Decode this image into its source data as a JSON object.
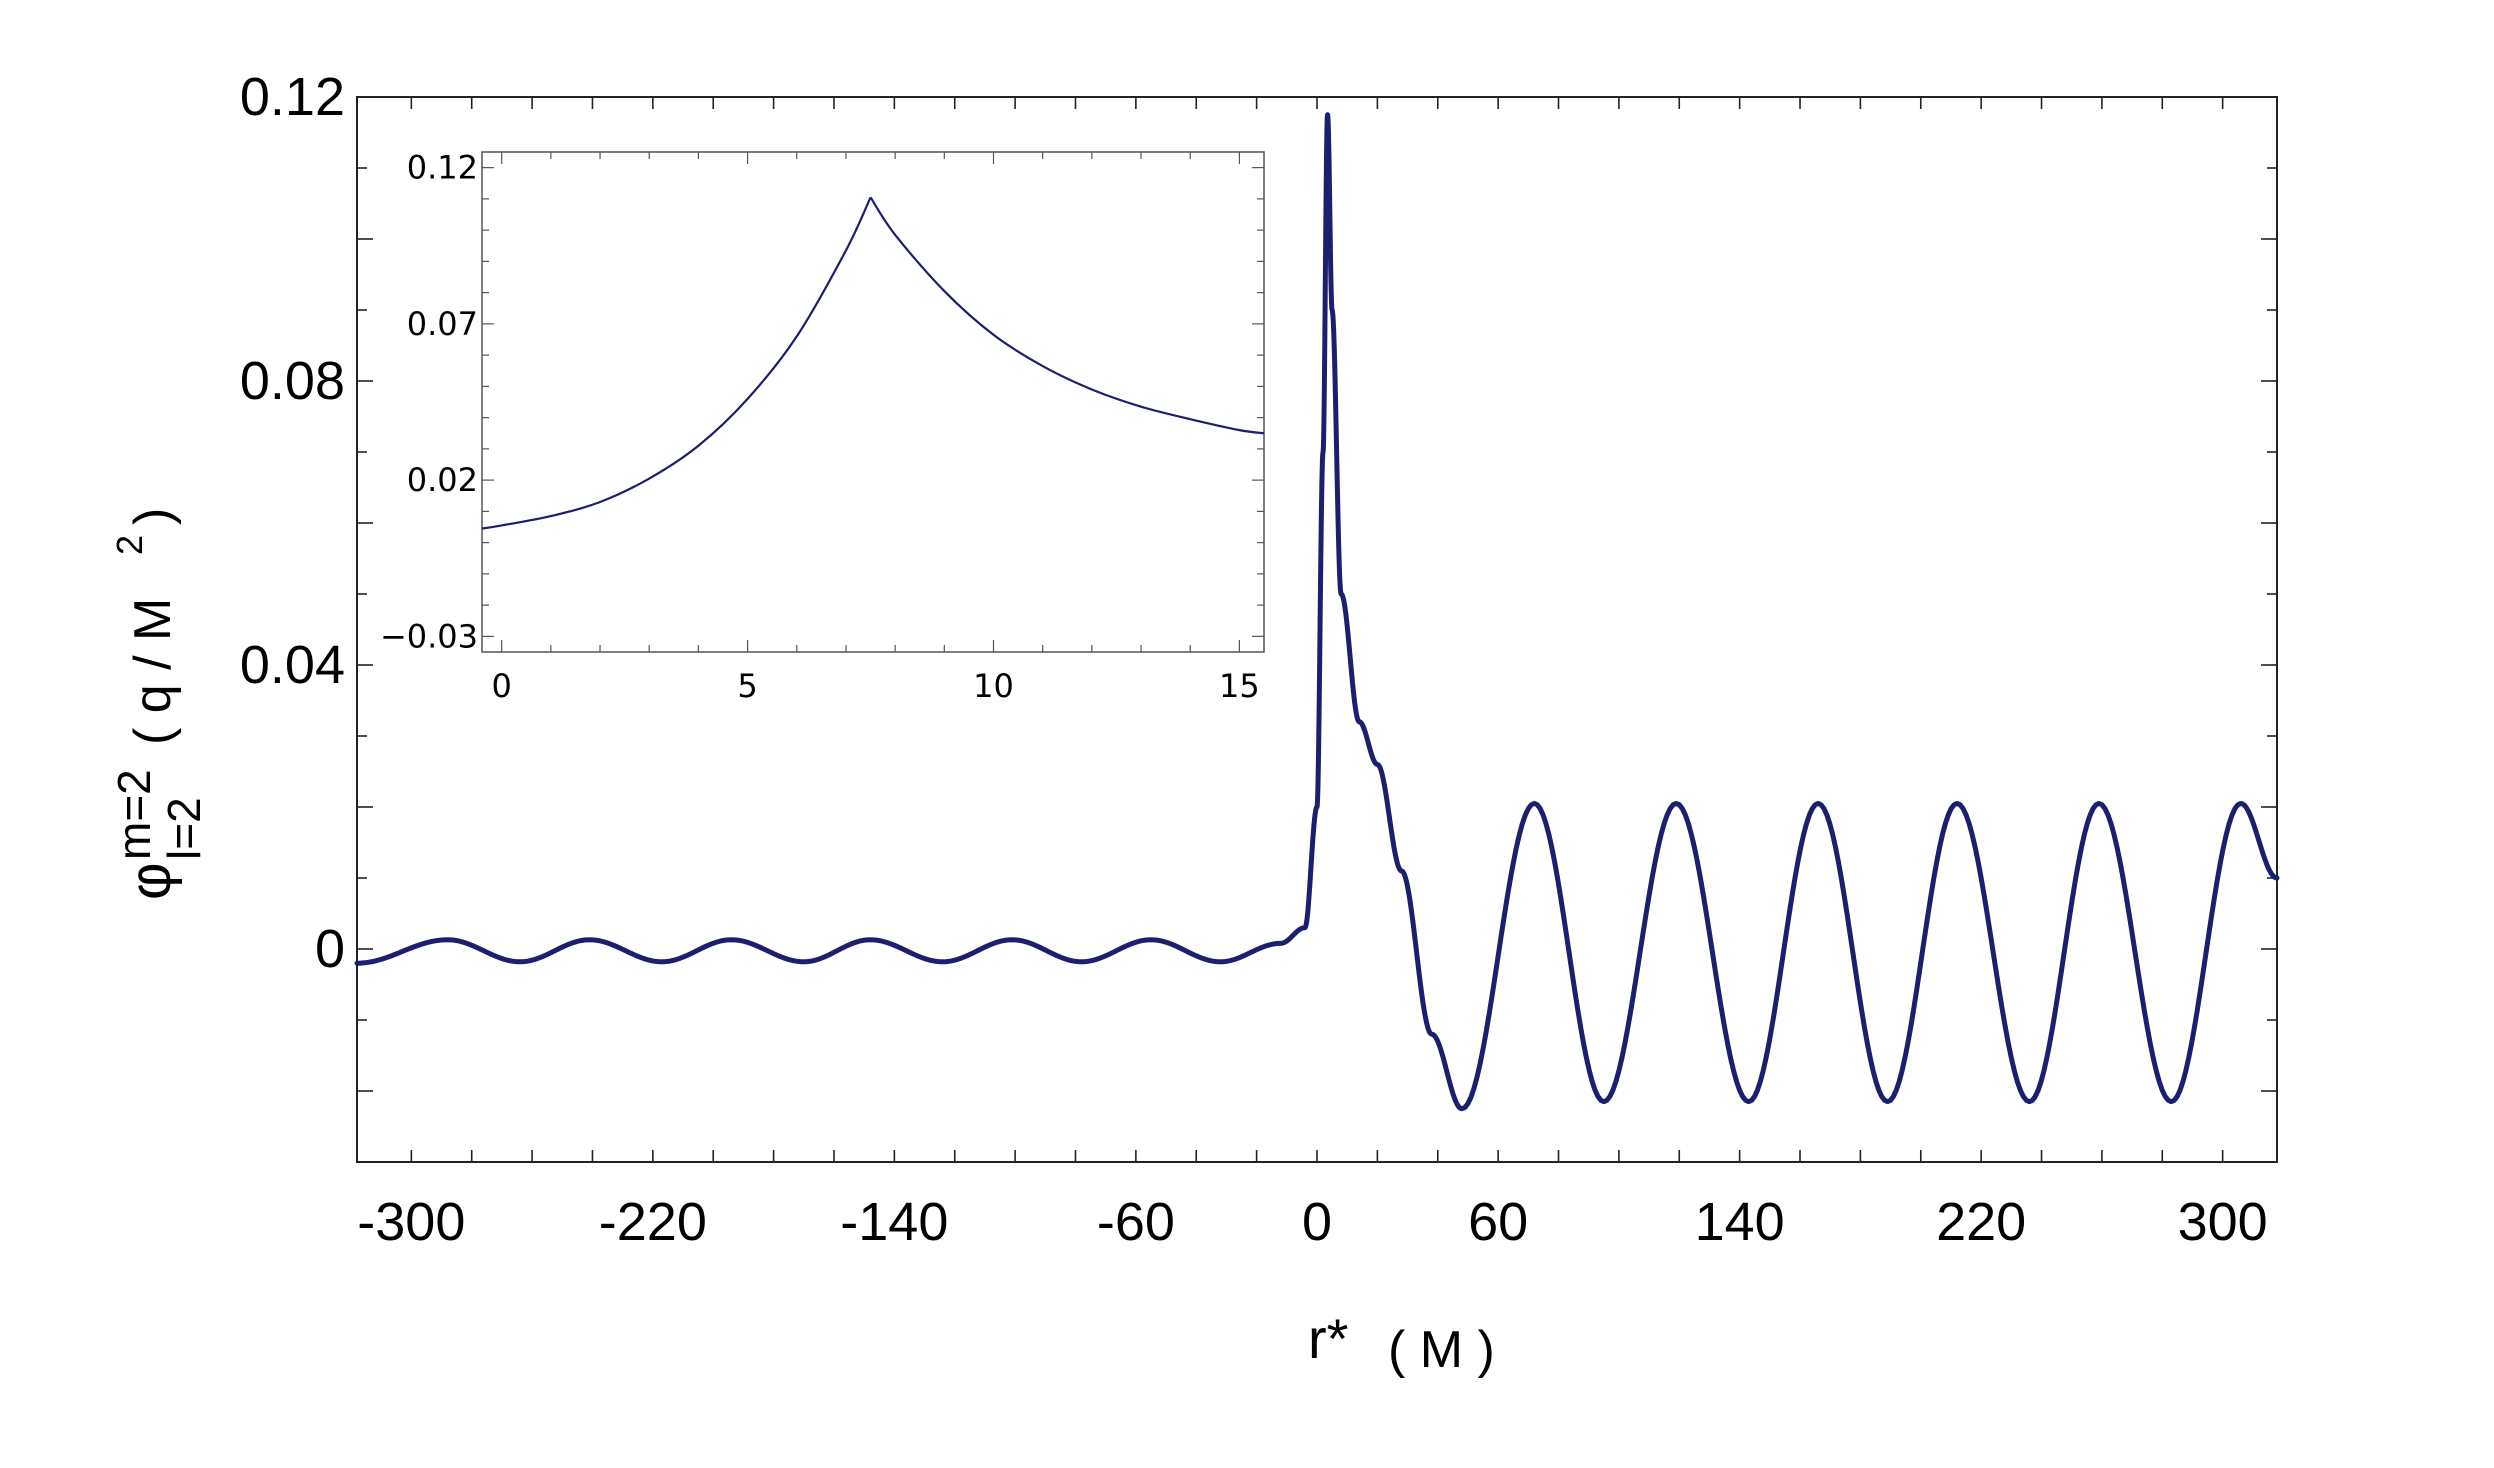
{
  "chart_data": [
    {
      "id": "main",
      "type": "line",
      "title": "",
      "xlabel": "r*",
      "xlabel_unit": "( M )",
      "ylabel": "φ",
      "ylabel_sup": "m=2",
      "ylabel_sub": "l=2",
      "ylabel_unit": "( q / M",
      "ylabel_unit_sup": "2",
      "ylabel_unit_close": ")",
      "xlim": [
        -318,
        318
      ],
      "ylim": [
        -0.03,
        0.12
      ],
      "xticks": [
        -300,
        -220,
        -140,
        -60,
        0,
        60,
        140,
        220,
        300
      ],
      "xtick_labels": [
        "-300",
        "-220",
        "-140",
        "-60",
        "0",
        "60",
        "140",
        "220",
        "300"
      ],
      "yticks": [
        0,
        0.04,
        0.08,
        0.12
      ],
      "ytick_labels": [
        "0",
        "0.04",
        "0.08",
        "0.12"
      ],
      "line_color": "#1c1f6e",
      "grid": false,
      "series": [
        {
          "description_points": [
            [
              -318,
              -0.002
            ],
            [
              -288,
              0.0013
            ],
            [
              -264,
              -0.0018
            ],
            [
              -241,
              0.0013
            ],
            [
              -217,
              -0.0018
            ],
            [
              -194,
              0.0013
            ],
            [
              -170,
              -0.0018
            ],
            [
              -148,
              0.0013
            ],
            [
              -124,
              -0.0018
            ],
            [
              -101,
              0.0013
            ],
            [
              -78,
              -0.0018
            ],
            [
              -55,
              0.0013
            ],
            [
              -32,
              -0.0018
            ],
            [
              -12,
              0.0008
            ],
            [
              -4,
              0.003
            ],
            [
              0,
              0.02
            ],
            [
              2,
              0.07
            ],
            [
              3.5,
              0.1175
            ],
            [
              5,
              0.09
            ],
            [
              8,
              0.05
            ],
            [
              14,
              0.032
            ],
            [
              20,
              0.026
            ],
            [
              28,
              0.011
            ],
            [
              38,
              -0.012
            ],
            [
              48,
              -0.0225
            ],
            [
              72,
              0.0205
            ],
            [
              95,
              -0.0215
            ],
            [
              119,
              0.0205
            ],
            [
              143,
              -0.0215
            ],
            [
              166,
              0.0205
            ],
            [
              189,
              -0.0215
            ],
            [
              212,
              0.0205
            ],
            [
              236,
              -0.0215
            ],
            [
              259,
              0.0205
            ],
            [
              283,
              -0.0215
            ],
            [
              306,
              0.0205
            ],
            [
              318,
              0.01
            ]
          ]
        }
      ]
    },
    {
      "id": "inset",
      "type": "line",
      "title": "",
      "xlabel": "",
      "ylabel": "",
      "xlim": [
        -0.4,
        15.5
      ],
      "ylim": [
        -0.035,
        0.125
      ],
      "xticks": [
        0,
        5,
        10,
        15
      ],
      "xtick_labels": [
        "0",
        "5",
        "10",
        "15"
      ],
      "yticks": [
        -0.03,
        0.02,
        0.07,
        0.12
      ],
      "ytick_labels": [
        "−0.03",
        "0.02",
        "0.07",
        "0.12"
      ],
      "line_color": "#1c1f6e",
      "grid": false,
      "series": [
        {
          "peak_x": 7.5,
          "peak_y": 0.1105,
          "points": [
            [
              -0.4,
              0.0045
            ],
            [
              0,
              0.0055
            ],
            [
              1,
              0.0085
            ],
            [
              2,
              0.013
            ],
            [
              3,
              0.0205
            ],
            [
              4,
              0.031
            ],
            [
              5,
              0.046
            ],
            [
              6,
              0.066
            ],
            [
              7,
              0.0935
            ],
            [
              7.5,
              0.1105
            ],
            [
              8,
              0.0985
            ],
            [
              9,
              0.0805
            ],
            [
              10,
              0.0665
            ],
            [
              11,
              0.0565
            ],
            [
              12,
              0.049
            ],
            [
              13,
              0.0435
            ],
            [
              14,
              0.0395
            ],
            [
              15,
              0.036
            ],
            [
              15.5,
              0.035
            ]
          ]
        }
      ]
    }
  ]
}
